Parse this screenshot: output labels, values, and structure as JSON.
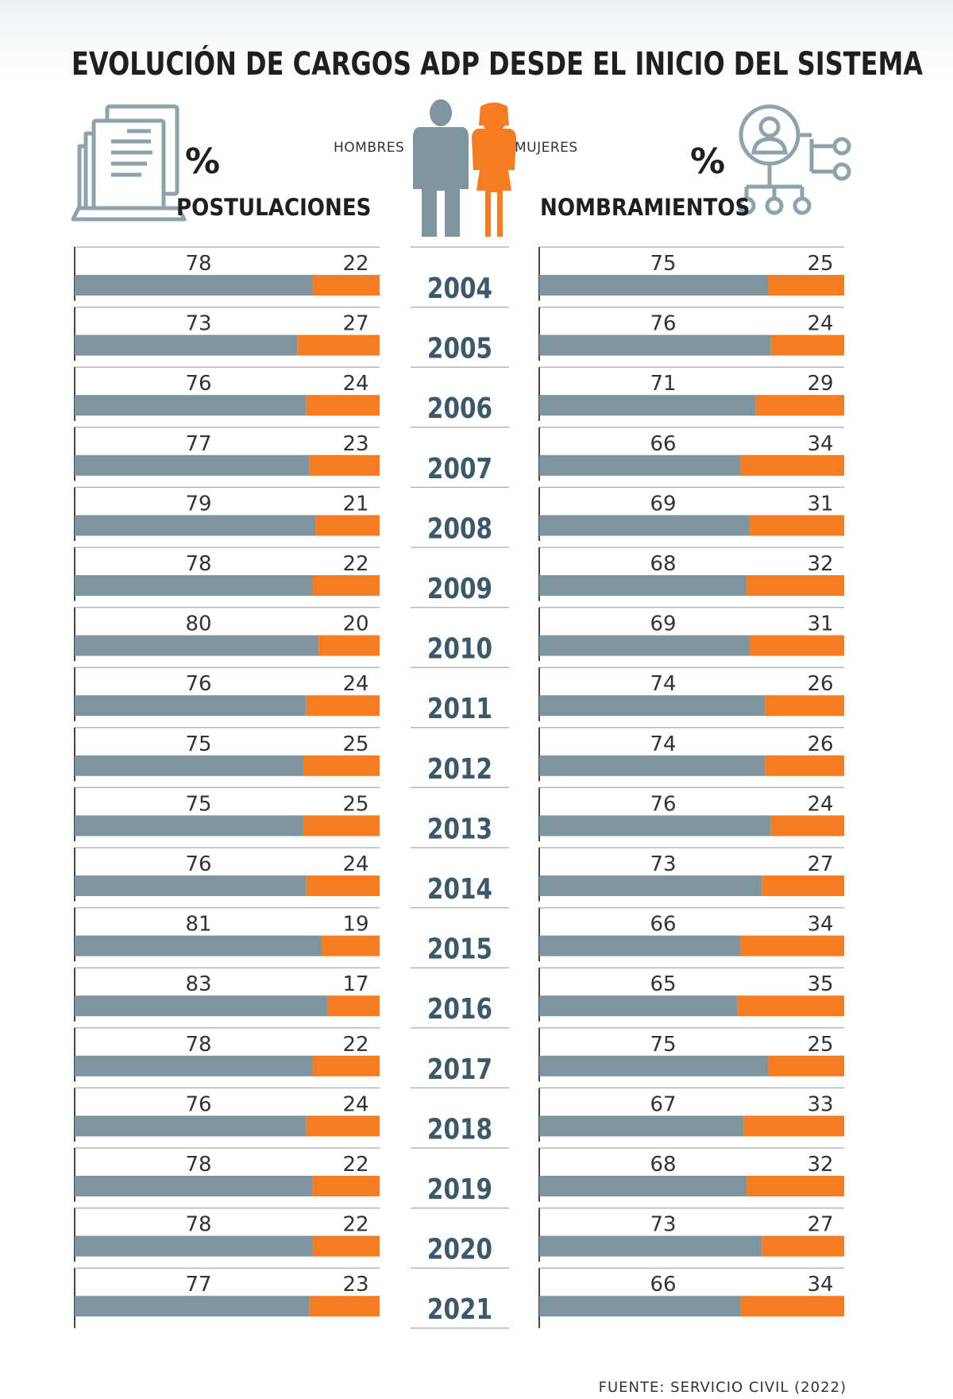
{
  "title": "EVOLUCIÓN DE CARGOS ADP DESDE EL INICIO DEL SISTEMA",
  "headers": {
    "left_pct": "%",
    "left_label": "POSTULACIONES",
    "right_pct": "%",
    "right_label": "NOMBRAMIENTOS",
    "men_label": "HOMBRES",
    "women_label": "MUJERES"
  },
  "source": "FUENTE: SERVICIO CIVIL (2022)",
  "colors": {
    "men": "#7e959f",
    "women": "#f57c20",
    "year": "#3d5869",
    "icon": "#8fa3ad"
  },
  "icons": [
    "document-laptop-icon",
    "men-figure-icon",
    "women-figure-icon",
    "person-org-chart-icon"
  ],
  "chart_data": [
    {
      "type": "bar",
      "stacked": true,
      "orientation": "horizontal",
      "title": "POSTULACIONES",
      "categories": [
        "2004",
        "2005",
        "2006",
        "2007",
        "2008",
        "2009",
        "2010",
        "2011",
        "2012",
        "2013",
        "2014",
        "2015",
        "2016",
        "2017",
        "2018",
        "2019",
        "2020",
        "2021"
      ],
      "series": [
        {
          "name": "HOMBRES",
          "values": [
            78,
            73,
            76,
            77,
            79,
            78,
            80,
            76,
            75,
            75,
            76,
            81,
            83,
            78,
            76,
            78,
            78,
            77
          ]
        },
        {
          "name": "MUJERES",
          "values": [
            22,
            27,
            24,
            23,
            21,
            22,
            20,
            24,
            25,
            25,
            24,
            19,
            17,
            22,
            24,
            22,
            22,
            23
          ]
        }
      ],
      "xlim": [
        0,
        100
      ]
    },
    {
      "type": "bar",
      "stacked": true,
      "orientation": "horizontal",
      "title": "NOMBRAMIENTOS",
      "categories": [
        "2004",
        "2005",
        "2006",
        "2007",
        "2008",
        "2009",
        "2010",
        "2011",
        "2012",
        "2013",
        "2014",
        "2015",
        "2016",
        "2017",
        "2018",
        "2019",
        "2020",
        "2021"
      ],
      "series": [
        {
          "name": "HOMBRES",
          "values": [
            75,
            76,
            71,
            66,
            69,
            68,
            69,
            74,
            74,
            76,
            73,
            66,
            65,
            75,
            67,
            68,
            73,
            66
          ]
        },
        {
          "name": "MUJERES",
          "values": [
            25,
            24,
            29,
            34,
            31,
            32,
            31,
            26,
            26,
            24,
            27,
            34,
            35,
            25,
            33,
            32,
            27,
            34
          ]
        }
      ],
      "xlim": [
        0,
        100
      ]
    }
  ]
}
